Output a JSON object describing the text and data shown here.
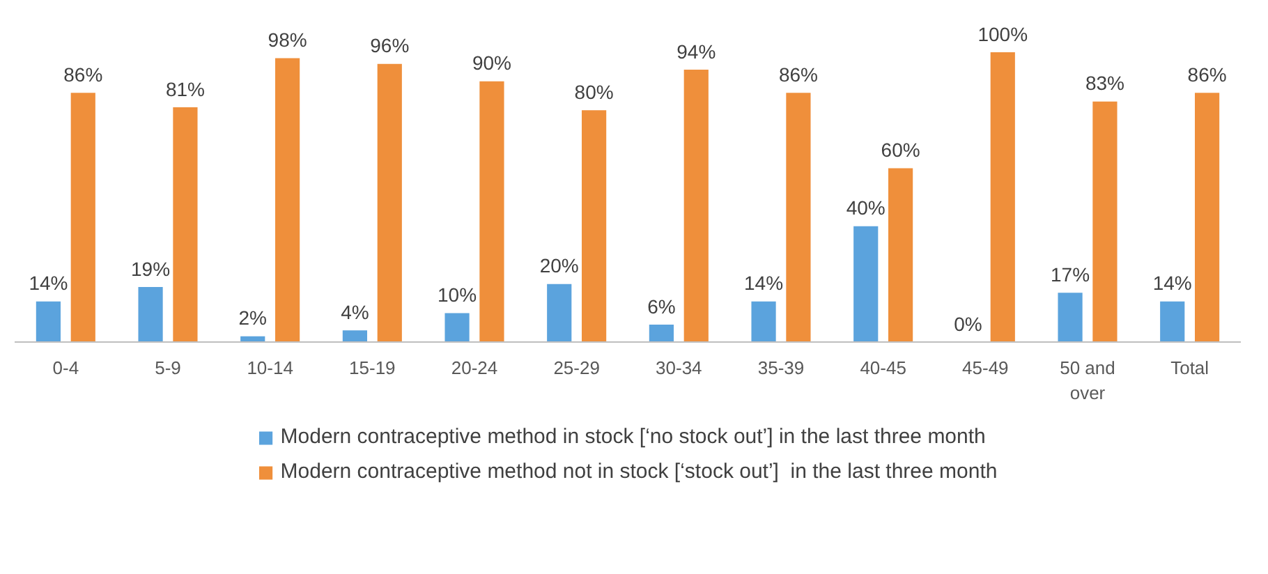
{
  "chart_data": {
    "type": "bar",
    "categories": [
      "0-4",
      "5-9",
      "10-14",
      "15-19",
      "20-24",
      "25-29",
      "30-34",
      "35-39",
      "40-45",
      "45-49",
      "50 and over",
      "Total"
    ],
    "series": [
      {
        "name": "Modern contraceptive method in stock [‘no stock out’] in the last three month",
        "color": "#5ba3dd",
        "values": [
          14,
          19,
          2,
          4,
          10,
          20,
          6,
          14,
          40,
          0,
          17,
          14
        ],
        "value_labels": [
          "14%",
          "19%",
          "2%",
          "4%",
          "10%",
          "20%",
          "6%",
          "14%",
          "40%",
          "0%",
          "17%",
          "14%"
        ]
      },
      {
        "name": "Modern contraceptive method not in stock [‘stock out’]  in the last three month",
        "color": "#ef8f3b",
        "values": [
          86,
          81,
          98,
          96,
          90,
          80,
          94,
          86,
          60,
          100,
          83,
          86
        ],
        "value_labels": [
          "86%",
          "81%",
          "98%",
          "96%",
          "90%",
          "80%",
          "94%",
          "86%",
          "60%",
          "100%",
          "83%",
          "86%"
        ]
      }
    ],
    "legend": "bottom"
  }
}
